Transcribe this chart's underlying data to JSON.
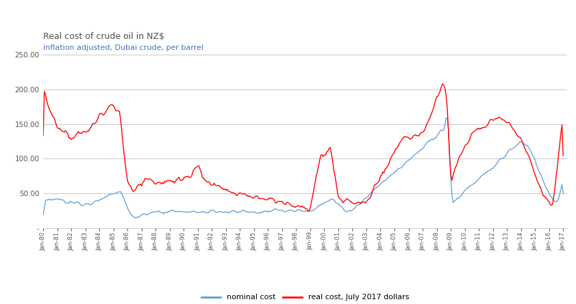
{
  "title_line1": "Real cost of crude oil in NZ$",
  "title_line2": "inflation adjusted, Dubai crude, per barrel",
  "title_color": "#4f4f4f",
  "subtitle_color": "#4472c4",
  "ylim": [
    0,
    250
  ],
  "nominal_color": "#5B9BD5",
  "real_color": "#FF0000",
  "bg_color": "#FFFFFF",
  "grid_color": "#BFBFBF",
  "legend_nominal": "nominal cost",
  "legend_real": "real cost, July 2017 dollars"
}
